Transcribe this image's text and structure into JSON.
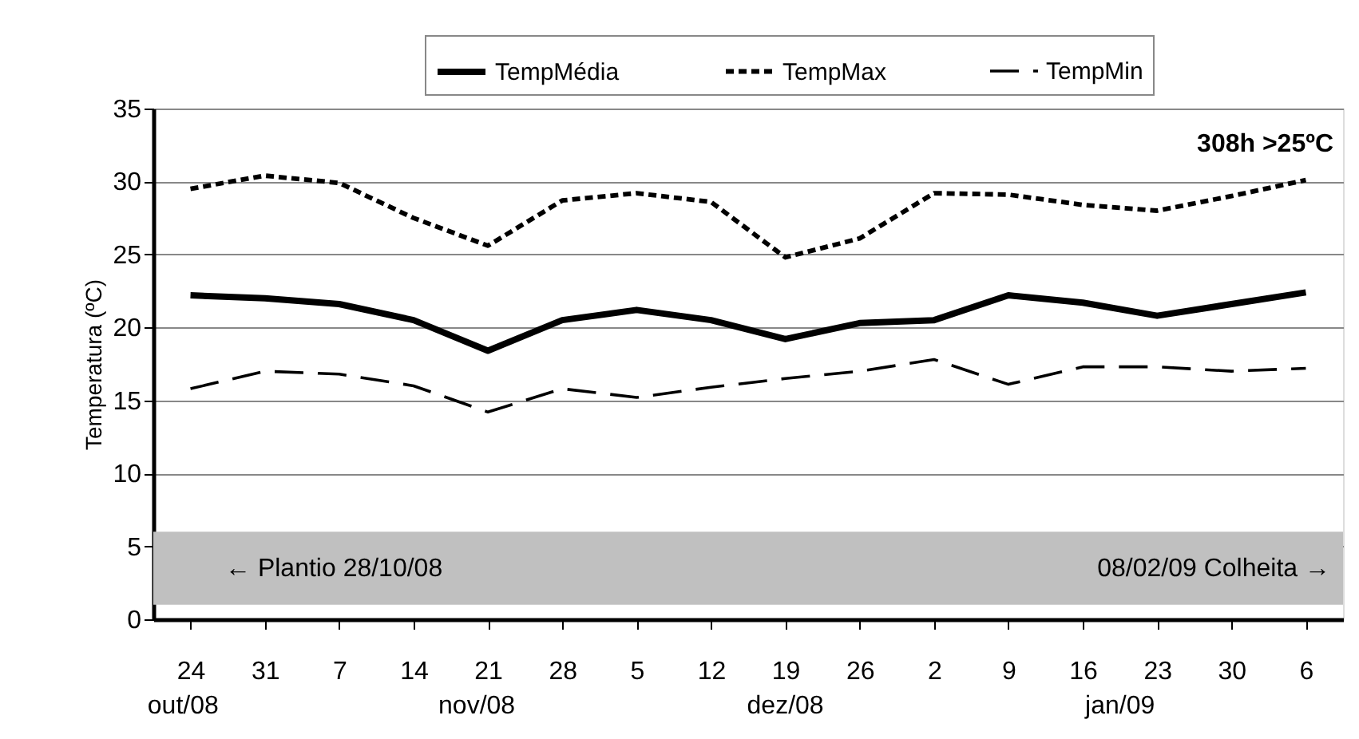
{
  "chart_data": {
    "type": "line",
    "ylabel": "Temperatura (ºC)",
    "categories": [
      "24",
      "31",
      "7",
      "14",
      "21",
      "28",
      "5",
      "12",
      "19",
      "26",
      "2",
      "9",
      "16",
      "23",
      "30",
      "6"
    ],
    "series": [
      {
        "name": "TempMédia",
        "color": "#000000",
        "line_style": "solid",
        "values": [
          22.2,
          22.0,
          21.6,
          20.5,
          18.4,
          20.5,
          21.2,
          20.5,
          19.2,
          20.3,
          20.5,
          22.2,
          21.7,
          20.8,
          21.6,
          22.4
        ]
      },
      {
        "name": "TempMax",
        "color": "#000000",
        "line_style": "dotted",
        "values": [
          29.5,
          30.4,
          29.9,
          27.5,
          25.6,
          28.7,
          29.2,
          28.6,
          24.8,
          26.1,
          29.2,
          29.1,
          28.4,
          28.0,
          29.0,
          30.1
        ]
      },
      {
        "name": "TempMin",
        "color": "#000000",
        "line_style": "dashed",
        "values": [
          15.8,
          17.0,
          16.8,
          16.0,
          14.2,
          15.8,
          15.2,
          15.9,
          16.5,
          17.0,
          17.8,
          16.1,
          17.3,
          17.3,
          17.0,
          17.2
        ]
      }
    ],
    "ylim": [
      0,
      35
    ],
    "yticks": [
      0,
      5,
      10,
      15,
      20,
      25,
      30,
      35
    ],
    "grid": "y",
    "legend": "top right",
    "marker": "none",
    "bands": [
      {
        "axis": "y",
        "from": 1,
        "to": 6,
        "color": "#c0c0c0"
      }
    ],
    "annotations": [
      "308h >25ºC",
      "← Plantio 28/10/08",
      "08/02/09 Colheita →",
      "out/08",
      "nov/08",
      "dez/08",
      "jan/09"
    ]
  }
}
